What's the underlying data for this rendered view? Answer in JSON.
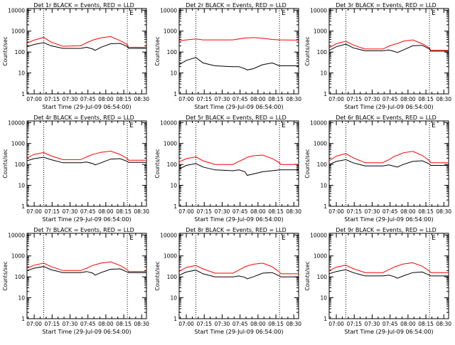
{
  "legend_text": "BLACK = Events, RED = LLD",
  "colors": {
    "events": "#000000",
    "lld": "#ff0000",
    "axis": "#000000"
  },
  "chart_data": [
    {
      "type": "line",
      "title": "Det 1r BLACK = Events, RED = LLD",
      "xlabel": "Start Time (29-Jul-09 06:54:00)",
      "ylabel": "Counts/sec",
      "x_ticks": [
        "07:00",
        "07:15",
        "07:30",
        "07:45",
        "08:00",
        "08:15",
        "08:30"
      ],
      "y_ticks": [
        "1",
        "10",
        "100",
        "1000",
        "10000"
      ],
      "y_scale": "log",
      "xlim_min": [
        0,
        100
      ],
      "ylim": [
        1,
        12000
      ],
      "markers_min": [
        14,
        84
      ],
      "x_min": [
        0,
        6,
        14,
        20,
        30,
        45,
        50,
        55,
        57,
        62,
        70,
        78,
        84,
        85,
        100
      ],
      "series": [
        {
          "values": [
            180,
            230,
            280,
            200,
            150,
            150,
            170,
            140,
            120,
            170,
            250,
            260,
            185,
            150,
            150
          ]
        },
        {
          "values": [
            270,
            370,
            500,
            300,
            190,
            200,
            280,
            370,
            400,
            480,
            550,
            350,
            230,
            170,
            165
          ]
        }
      ]
    },
    {
      "type": "line",
      "title": "Det 2r BLACK = Events, RED = LLD",
      "xlabel": "Start Time (29-Jul-09 06:54:00)",
      "ylabel": "Counts/sec",
      "x_ticks": [
        "07:00",
        "07:15",
        "07:30",
        "07:45",
        "08:00",
        "08:15",
        "08:30"
      ],
      "y_ticks": [
        "1",
        "10",
        "100",
        "1000",
        "10000"
      ],
      "y_scale": "log",
      "xlim_min": [
        0,
        100
      ],
      "ylim": [
        1,
        12000
      ],
      "markers_min": [
        14,
        84
      ],
      "x_min": [
        0,
        6,
        14,
        20,
        30,
        45,
        50,
        55,
        57,
        62,
        70,
        78,
        84,
        85,
        100
      ],
      "series": [
        {
          "values": [
            25,
            40,
            55,
            30,
            22,
            20,
            20,
            16,
            14,
            16,
            25,
            30,
            22,
            22,
            22
          ]
        },
        {
          "values": [
            350,
            380,
            420,
            380,
            380,
            380,
            420,
            470,
            470,
            490,
            460,
            400,
            380,
            380,
            370
          ]
        }
      ]
    },
    {
      "type": "line",
      "title": "Det 3r BLACK = Events, RED = LLD",
      "xlabel": "Start Time (29-Jul-09 06:54:00)",
      "ylabel": "Counts/sec",
      "x_ticks": [
        "07:00",
        "07:15",
        "07:30",
        "07:45",
        "08:00",
        "08:15",
        "08:30"
      ],
      "y_ticks": [
        "1",
        "10",
        "100",
        "1000",
        "10000"
      ],
      "y_scale": "log",
      "xlim_min": [
        0,
        100
      ],
      "ylim": [
        1,
        12000
      ],
      "markers_min": [
        14,
        84
      ],
      "x_min": [
        0,
        6,
        14,
        20,
        30,
        45,
        50,
        55,
        57,
        62,
        70,
        78,
        84,
        85,
        100
      ],
      "series": [
        {
          "values": [
            120,
            180,
            240,
            160,
            115,
            115,
            125,
            105,
            95,
            125,
            200,
            210,
            140,
            110,
            110
          ]
        },
        {
          "values": [
            160,
            250,
            330,
            220,
            140,
            140,
            190,
            240,
            250,
            330,
            380,
            250,
            160,
            120,
            120
          ]
        }
      ]
    },
    {
      "type": "line",
      "title": "Det 4r BLACK = Events, RED = LLD",
      "xlabel": "Start Time (29-Jul-09 06:54:00)",
      "ylabel": "Counts/sec",
      "x_ticks": [
        "07:00",
        "07:15",
        "07:30",
        "07:45",
        "08:00",
        "08:15",
        "08:30"
      ],
      "y_ticks": [
        "1",
        "10",
        "100",
        "1000",
        "10000"
      ],
      "y_scale": "log",
      "xlim_min": [
        0,
        100
      ],
      "ylim": [
        1,
        12000
      ],
      "markers_min": [
        14,
        84
      ],
      "x_min": [
        0,
        6,
        14,
        20,
        30,
        45,
        50,
        55,
        57,
        62,
        70,
        78,
        84,
        85,
        100
      ],
      "series": [
        {
          "values": [
            150,
            190,
            220,
            170,
            120,
            120,
            130,
            110,
            95,
            120,
            180,
            190,
            140,
            125,
            125
          ]
        },
        {
          "values": [
            210,
            300,
            370,
            260,
            170,
            170,
            230,
            300,
            320,
            380,
            430,
            300,
            190,
            160,
            160
          ]
        }
      ]
    },
    {
      "type": "line",
      "title": "Det 5r BLACK = Events, RED = LLD",
      "xlabel": "Start Time (29-Jul-09 06:54:00)",
      "ylabel": "Counts/sec",
      "x_ticks": [
        "07:00",
        "07:15",
        "07:30",
        "07:45",
        "08:00",
        "08:15",
        "08:30"
      ],
      "y_ticks": [
        "1",
        "10",
        "100",
        "1000",
        "10000"
      ],
      "y_scale": "log",
      "xlim_min": [
        0,
        100
      ],
      "ylim": [
        1,
        12000
      ],
      "markers_min": [
        14,
        84
      ],
      "x_min": [
        0,
        6,
        14,
        20,
        30,
        45,
        50,
        55,
        57,
        62,
        70,
        78,
        84,
        85,
        100
      ],
      "series": [
        {
          "values": [
            60,
            90,
            110,
            75,
            55,
            50,
            55,
            45,
            30,
            35,
            45,
            50,
            55,
            55,
            55
          ]
        },
        {
          "values": [
            130,
            190,
            230,
            150,
            100,
            100,
            140,
            190,
            220,
            260,
            280,
            190,
            120,
            100,
            100
          ]
        }
      ]
    },
    {
      "type": "line",
      "title": "Det 6r BLACK = Events, RED = LLD",
      "xlabel": "Start Time (29-Jul-09 06:54:00)",
      "ylabel": "Counts/sec",
      "x_ticks": [
        "07:00",
        "07:15",
        "07:30",
        "07:45",
        "08:00",
        "08:15",
        "08:30"
      ],
      "y_ticks": [
        "1",
        "10",
        "100",
        "1000",
        "10000"
      ],
      "y_scale": "log",
      "xlim_min": [
        0,
        100
      ],
      "ylim": [
        1,
        12000
      ],
      "markers_min": [
        14,
        84
      ],
      "x_min": [
        0,
        6,
        14,
        20,
        30,
        45,
        50,
        55,
        57,
        62,
        70,
        78,
        84,
        85,
        100
      ],
      "series": [
        {
          "values": [
            100,
            140,
            170,
            120,
            85,
            85,
            95,
            80,
            75,
            100,
            140,
            150,
            105,
            90,
            90
          ]
        },
        {
          "values": [
            150,
            250,
            330,
            210,
            120,
            120,
            170,
            250,
            270,
            360,
            420,
            270,
            150,
            120,
            120
          ]
        }
      ]
    },
    {
      "type": "line",
      "title": "Det 7r BLACK = Events, RED = LLD",
      "xlabel": "Start Time (29-Jul-09 06:54:00)",
      "ylabel": "Counts/sec",
      "x_ticks": [
        "07:00",
        "07:15",
        "07:30",
        "07:45",
        "08:00",
        "08:15",
        "08:30"
      ],
      "y_ticks": [
        "1",
        "10",
        "100",
        "1000",
        "10000"
      ],
      "y_scale": "log",
      "xlim_min": [
        0,
        100
      ],
      "ylim": [
        1,
        12000
      ],
      "markers_min": [
        14,
        84
      ],
      "x_min": [
        0,
        6,
        14,
        20,
        30,
        45,
        50,
        55,
        57,
        62,
        70,
        78,
        84,
        85,
        100
      ],
      "series": [
        {
          "values": [
            200,
            260,
            310,
            220,
            160,
            160,
            180,
            150,
            120,
            160,
            230,
            240,
            170,
            160,
            160
          ]
        },
        {
          "values": [
            260,
            360,
            450,
            310,
            200,
            200,
            260,
            350,
            380,
            450,
            520,
            350,
            220,
            180,
            180
          ]
        }
      ]
    },
    {
      "type": "line",
      "title": "Det 8r BLACK = Events, RED = LLD",
      "xlabel": "Start Time (29-Jul-09 06:54:00)",
      "ylabel": "Counts/sec",
      "x_ticks": [
        "07:00",
        "07:15",
        "07:30",
        "07:45",
        "08:00",
        "08:15",
        "08:30"
      ],
      "y_ticks": [
        "1",
        "10",
        "100",
        "1000",
        "10000"
      ],
      "y_scale": "log",
      "xlim_min": [
        0,
        100
      ],
      "ylim": [
        1,
        12000
      ],
      "markers_min": [
        14,
        84
      ],
      "x_min": [
        0,
        6,
        14,
        20,
        30,
        45,
        50,
        55,
        57,
        62,
        70,
        78,
        84,
        85,
        100
      ],
      "series": [
        {
          "values": [
            120,
            170,
            210,
            140,
            100,
            100,
            110,
            95,
            80,
            100,
            150,
            160,
            110,
            100,
            100
          ]
        },
        {
          "values": [
            180,
            280,
            350,
            240,
            150,
            150,
            210,
            300,
            330,
            400,
            450,
            300,
            170,
            140,
            140
          ]
        }
      ]
    },
    {
      "type": "line",
      "title": "Det 9r BLACK = Events, RED = LLD",
      "xlabel": "Start Time (29-Jul-09 06:54:00)",
      "ylabel": "Counts/sec",
      "x_ticks": [
        "07:00",
        "07:15",
        "07:30",
        "07:45",
        "08:00",
        "08:15",
        "08:30"
      ],
      "y_ticks": [
        "1",
        "10",
        "100",
        "1000",
        "10000"
      ],
      "y_scale": "log",
      "xlim_min": [
        0,
        100
      ],
      "ylim": [
        1,
        12000
      ],
      "markers_min": [
        14,
        84
      ],
      "x_min": [
        0,
        6,
        14,
        20,
        30,
        45,
        50,
        55,
        57,
        62,
        70,
        78,
        84,
        85,
        100
      ],
      "series": [
        {
          "values": [
            140,
            180,
            220,
            160,
            110,
            110,
            120,
            100,
            85,
            110,
            160,
            170,
            120,
            110,
            110
          ]
        },
        {
          "values": [
            200,
            290,
            360,
            250,
            160,
            160,
            220,
            300,
            330,
            410,
            470,
            320,
            190,
            160,
            160
          ]
        }
      ]
    }
  ]
}
